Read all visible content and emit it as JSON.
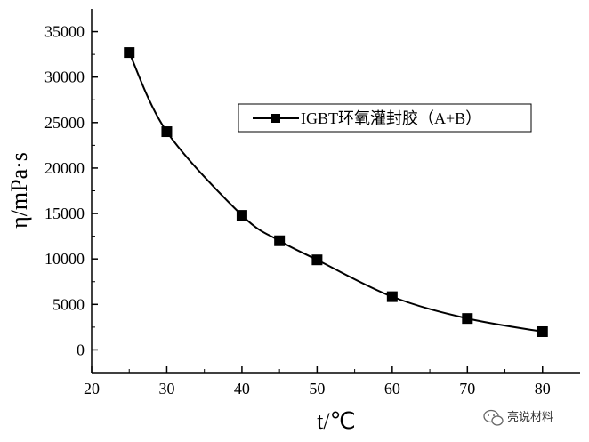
{
  "chart_data": {
    "type": "line",
    "title": "",
    "xlabel": "t/℃",
    "ylabel": "η/mPa·s",
    "xlim": [
      20,
      85
    ],
    "ylim": [
      -2500,
      37500
    ],
    "x_ticks": [
      20,
      30,
      40,
      50,
      60,
      70,
      80
    ],
    "y_ticks": [
      0,
      5000,
      10000,
      15000,
      20000,
      25000,
      30000,
      35000
    ],
    "grid": false,
    "legend_position": "upper-right",
    "series": [
      {
        "name": "IGBT环氧灌封胶（A+B）",
        "marker": "square",
        "color": "#000000",
        "x": [
          25,
          30,
          40,
          45,
          50,
          60,
          70,
          80
        ],
        "y": [
          32700,
          24000,
          14800,
          12000,
          9900,
          5850,
          3450,
          2000
        ]
      }
    ]
  },
  "watermark": {
    "icon": "wechat-icon",
    "text": "亮说材料"
  }
}
